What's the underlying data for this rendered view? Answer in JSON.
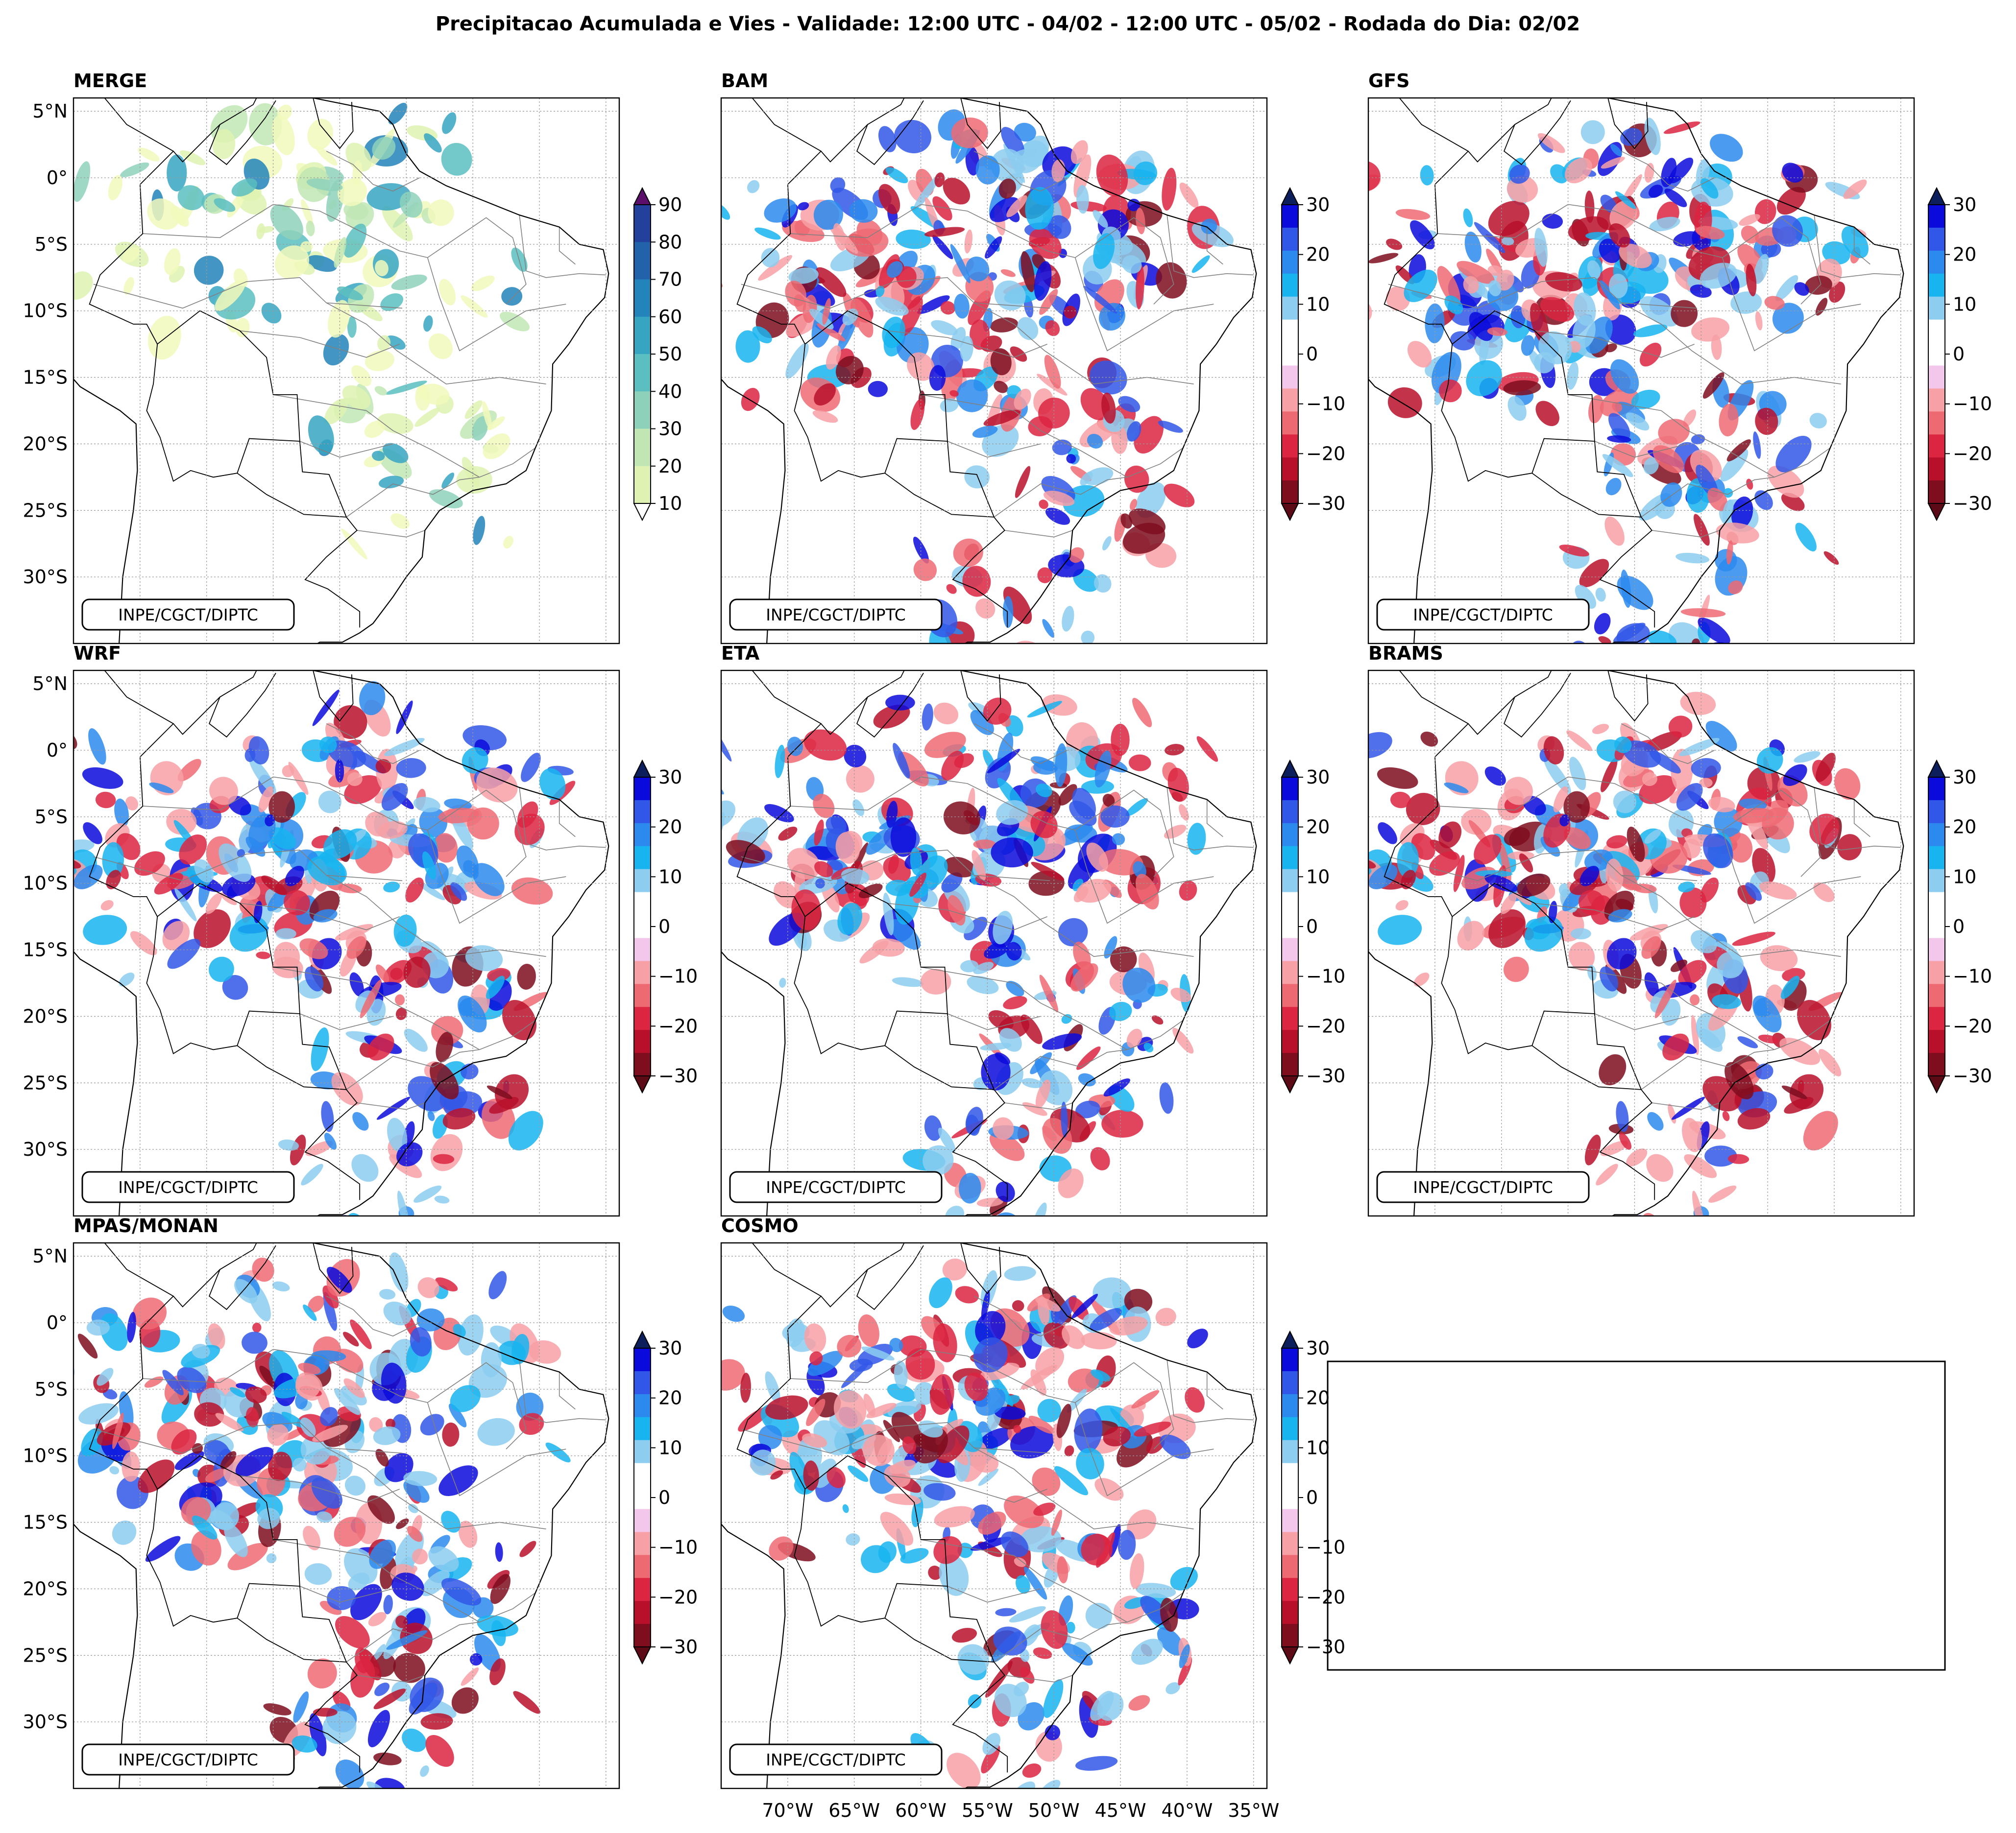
{
  "figure": {
    "title": "Precipitacao Acumulada e Vies - Validade: 12:00 UTC - 04/02 - 12:00 UTC - 05/02 - Rodada do Dia: 02/02",
    "credit": "INPE/CGCT/DIPTC"
  },
  "chart_data": {
    "type": "map_grid",
    "lon_ticks": [
      "70°W",
      "65°W",
      "60°W",
      "55°W",
      "50°W",
      "45°W",
      "40°W",
      "35°W"
    ],
    "lat_ticks": [
      "5°N",
      "0°",
      "5°S",
      "10°S",
      "15°S",
      "20°S",
      "25°S",
      "30°S"
    ],
    "lon_range": [
      -75,
      -34
    ],
    "lat_range": [
      -35,
      6
    ],
    "panels": [
      {
        "name": "MERGE",
        "kind": "precip"
      },
      {
        "name": "BAM",
        "kind": "bias"
      },
      {
        "name": "GFS",
        "kind": "bias"
      },
      {
        "name": "WRF",
        "kind": "bias"
      },
      {
        "name": "ETA",
        "kind": "bias"
      },
      {
        "name": "BRAMS",
        "kind": "bias"
      },
      {
        "name": "MPAS/MONAN",
        "kind": "bias"
      },
      {
        "name": "COSMO",
        "kind": "bias"
      }
    ],
    "precip_colorbar": {
      "ticks": [
        "10",
        "20",
        "30",
        "40",
        "50",
        "60",
        "70",
        "80",
        "90"
      ],
      "colors": [
        "#f2f9bc",
        "#dff2b2",
        "#c1e6b4",
        "#8ed1bb",
        "#5bbec0",
        "#36a5c2",
        "#2284ba",
        "#2162aa",
        "#23409c",
        "#172a7b",
        "#081d58"
      ],
      "over_color": "#5b0f6a"
    },
    "bias_colorbar": {
      "ticks": [
        "30",
        "20",
        "10",
        "0",
        "−10",
        "−20",
        "−30"
      ],
      "colors_top_to_bottom": [
        "#0a0adc",
        "#3157e8",
        "#2c8aee",
        "#18b4f0",
        "#8ccdf0",
        "#ffffff",
        "#ffffff",
        "#f3c6eb",
        "#f7a0a5",
        "#ee6a73",
        "#dc2541",
        "#b8102b",
        "#7e0d1e"
      ],
      "over_color": "#0c1e5c",
      "under_color": "#5c0a16"
    }
  }
}
